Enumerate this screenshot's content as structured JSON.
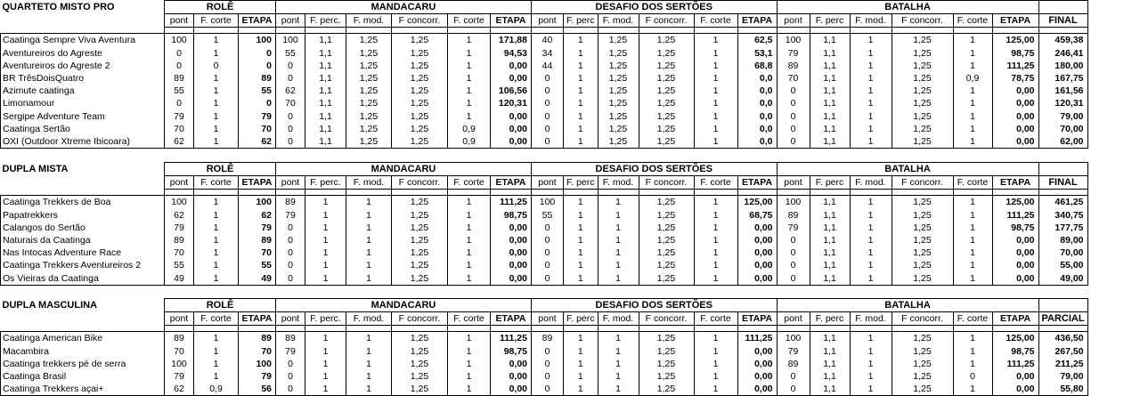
{
  "stages": [
    "ROLÊ",
    "MANDACARU",
    "DESAFIO DOS SERTÕES",
    "BATALHA"
  ],
  "sections": [
    {
      "title": "QUARTETO MISTO PRO",
      "final_label": "FINAL",
      "subheaders": [
        "pont",
        "F. corte",
        "ETAPA",
        "pont",
        "F. perc.",
        "F. mod.",
        "F concorr.",
        "F. corte",
        "ETAPA",
        "pont",
        "F. perc",
        "F. mod.",
        "F concorr.",
        "F. corte",
        "ETAPA",
        "pont",
        "F. perc",
        "F. mod.",
        "F concorr.",
        "F. corte",
        "ETAPA"
      ],
      "rows": [
        {
          "team": "Caatinga Sempre Viva Aventura",
          "cells": [
            "100",
            "1",
            "100",
            "100",
            "1,1",
            "1,25",
            "1,25",
            "1",
            "171,88",
            "40",
            "1",
            "1,25",
            "1,25",
            "1",
            "62,5",
            "100",
            "1,1",
            "1",
            "1,25",
            "1",
            "125,00"
          ],
          "final": "459,38"
        },
        {
          "team": "Aventureiros do Agreste",
          "cells": [
            "0",
            "1",
            "0",
            "55",
            "1,1",
            "1,25",
            "1,25",
            "1",
            "94,53",
            "34",
            "1",
            "1,25",
            "1,25",
            "1",
            "53,1",
            "79",
            "1,1",
            "1",
            "1,25",
            "1",
            "98,75"
          ],
          "final": "246,41"
        },
        {
          "team": "Aventureiros do Agreste 2",
          "cells": [
            "0",
            "0",
            "0",
            "0",
            "1,1",
            "1,25",
            "1,25",
            "1",
            "0,00",
            "44",
            "1",
            "1,25",
            "1,25",
            "1",
            "68,8",
            "89",
            "1,1",
            "1",
            "1,25",
            "1",
            "111,25"
          ],
          "final": "180,00"
        },
        {
          "team": "BR TrêsDoisQuatro",
          "cells": [
            "89",
            "1",
            "89",
            "0",
            "1,1",
            "1,25",
            "1,25",
            "1",
            "0,00",
            "0",
            "1",
            "1,25",
            "1,25",
            "1",
            "0,0",
            "70",
            "1,1",
            "1",
            "1,25",
            "0,9",
            "78,75"
          ],
          "final": "167,75"
        },
        {
          "team": "Azimute caatinga",
          "cells": [
            "55",
            "1",
            "55",
            "62",
            "1,1",
            "1,25",
            "1,25",
            "1",
            "106,56",
            "0",
            "1",
            "1,25",
            "1,25",
            "1",
            "0,0",
            "0",
            "1,1",
            "1",
            "1,25",
            "1",
            "0,00"
          ],
          "final": "161,56"
        },
        {
          "team": "Limonamour",
          "cells": [
            "0",
            "1",
            "0",
            "70",
            "1,1",
            "1,25",
            "1,25",
            "1",
            "120,31",
            "0",
            "1",
            "1,25",
            "1,25",
            "1",
            "0,0",
            "0",
            "1,1",
            "1",
            "1,25",
            "1",
            "0,00"
          ],
          "final": "120,31"
        },
        {
          "team": "Sergipe Adventure Team",
          "cells": [
            "79",
            "1",
            "79",
            "0",
            "1,1",
            "1,25",
            "1,25",
            "1",
            "0,00",
            "0",
            "1",
            "1,25",
            "1,25",
            "1",
            "0,0",
            "0",
            "1,1",
            "1",
            "1,25",
            "1",
            "0,00"
          ],
          "final": "79,00"
        },
        {
          "team": "Caatinga Sertão",
          "cells": [
            "70",
            "1",
            "70",
            "0",
            "1,1",
            "1,25",
            "1,25",
            "0,9",
            "0,00",
            "0",
            "1",
            "1,25",
            "1,25",
            "1",
            "0,0",
            "0",
            "1,1",
            "1",
            "1,25",
            "1",
            "0,00"
          ],
          "final": "70,00"
        },
        {
          "team": "OXI (Outdoor Xtreme Ibicoara)",
          "cells": [
            "62",
            "1",
            "62",
            "0",
            "1,1",
            "1,25",
            "1,25",
            "0,9",
            "0,00",
            "0",
            "1",
            "1,25",
            "1,25",
            "1",
            "0,0",
            "0",
            "1,1",
            "1",
            "1,25",
            "1",
            "0,00"
          ],
          "final": "62,00"
        }
      ]
    },
    {
      "title": "DUPLA MISTA",
      "final_label": "FINAL",
      "subheaders": [
        "pont",
        "F. corte",
        "ETAPA",
        "pont",
        "F. perc.",
        "F. mod.",
        "F concorr.",
        "F. corte",
        "ETAPA",
        "pont",
        "F. perc",
        "F. mod.",
        "F concorr.",
        "F. corte",
        "ETAPA",
        "pont",
        "F. perc",
        "F. mod.",
        "F concorr.",
        "F. corte",
        "ETAPA"
      ],
      "rows": [
        {
          "team": "Caatinga Trekkers de Boa",
          "cells": [
            "100",
            "1",
            "100",
            "89",
            "1",
            "1",
            "1,25",
            "1",
            "111,25",
            "100",
            "1",
            "1",
            "1,25",
            "1",
            "125,00",
            "100",
            "1,1",
            "1",
            "1,25",
            "1",
            "125,00"
          ],
          "final": "461,25"
        },
        {
          "team": "Papatrekkers",
          "cells": [
            "62",
            "1",
            "62",
            "79",
            "1",
            "1",
            "1,25",
            "1",
            "98,75",
            "55",
            "1",
            "1",
            "1,25",
            "1",
            "68,75",
            "89",
            "1,1",
            "1",
            "1,25",
            "1",
            "111,25"
          ],
          "final": "340,75"
        },
        {
          "team": "Calangos do Sertão",
          "cells": [
            "79",
            "1",
            "79",
            "0",
            "1",
            "1",
            "1,25",
            "1",
            "0,00",
            "0",
            "1",
            "1",
            "1,25",
            "1",
            "0,00",
            "79",
            "1,1",
            "1",
            "1,25",
            "1",
            "98,75"
          ],
          "final": "177,75"
        },
        {
          "team": "Naturais da Caatinga",
          "cells": [
            "89",
            "1",
            "89",
            "0",
            "1",
            "1",
            "1,25",
            "1",
            "0,00",
            "0",
            "1",
            "1",
            "1,25",
            "1",
            "0,00",
            "0",
            "1,1",
            "1",
            "1,25",
            "1",
            "0,00"
          ],
          "final": "89,00"
        },
        {
          "team": "Nas Intocas Adventure Race",
          "cells": [
            "70",
            "1",
            "70",
            "0",
            "1",
            "1",
            "1,25",
            "1",
            "0,00",
            "0",
            "1",
            "1",
            "1,25",
            "1",
            "0,00",
            "0",
            "1,1",
            "1",
            "1,25",
            "1",
            "0,00"
          ],
          "final": "70,00"
        },
        {
          "team": "Caatinga Trekkers Aventureiros 2",
          "cells": [
            "55",
            "1",
            "55",
            "0",
            "1",
            "1",
            "1,25",
            "1",
            "0,00",
            "0",
            "1",
            "1",
            "1,25",
            "1",
            "0,00",
            "0",
            "1,1",
            "1",
            "1,25",
            "1",
            "0,00"
          ],
          "final": "55,00"
        },
        {
          "team": "Os Vieiras da Caatinga",
          "cells": [
            "49",
            "1",
            "49",
            "0",
            "1",
            "1",
            "1,25",
            "1",
            "0,00",
            "0",
            "1",
            "1",
            "1,25",
            "1",
            "0,00",
            "0",
            "1,1",
            "1",
            "1,25",
            "1",
            "0,00"
          ],
          "final": "49,00"
        }
      ]
    },
    {
      "title": "DUPLA MASCULINA",
      "final_label": "PARCIAL",
      "subheaders": [
        "pont",
        "F. corte",
        "ETAPA",
        "pont",
        "F. perc.",
        "F. mod.",
        "F concorr.",
        "F. corte",
        "ETAPA",
        "pont",
        "F. perc",
        "F. mod.",
        "F concorr.",
        "F. corte",
        "ETAPA",
        "pont",
        "F. perc",
        "F. mod.",
        "F concorr.",
        "F. corte",
        "ETAPA"
      ],
      "rows": [
        {
          "team": "Caatinga American Bike",
          "cells": [
            "89",
            "1",
            "89",
            "89",
            "1",
            "1",
            "1,25",
            "1",
            "111,25",
            "89",
            "1",
            "1",
            "1,25",
            "1",
            "111,25",
            "100",
            "1,1",
            "1",
            "1,25",
            "1",
            "125,00"
          ],
          "final": "436,50"
        },
        {
          "team": "Macambira",
          "cells": [
            "70",
            "1",
            "70",
            "79",
            "1",
            "1",
            "1,25",
            "1",
            "98,75",
            "0",
            "1",
            "1",
            "1,25",
            "1",
            "0,00",
            "79",
            "1,1",
            "1",
            "1,25",
            "1",
            "98,75"
          ],
          "final": "267,50"
        },
        {
          "team": "Caatinga trekkers pé de serra",
          "cells": [
            "100",
            "1",
            "100",
            "0",
            "1",
            "1",
            "1,25",
            "1",
            "0,00",
            "0",
            "1",
            "1",
            "1,25",
            "1",
            "0,00",
            "89",
            "1,1",
            "1",
            "1,25",
            "1",
            "111,25"
          ],
          "final": "211,25"
        },
        {
          "team": "Caatinga Brasil",
          "cells": [
            "79",
            "1",
            "79",
            "0",
            "1",
            "1",
            "1,25",
            "1",
            "0,00",
            "0",
            "1",
            "1",
            "1,25",
            "1",
            "0,00",
            "0",
            "1,1",
            "1",
            "1,25",
            "0",
            "0,00"
          ],
          "final": "79,00"
        },
        {
          "team": "Caatinga Trekkers açai+",
          "cells": [
            "62",
            "0,9",
            "56",
            "0",
            "1",
            "1",
            "1,25",
            "1",
            "0,00",
            "0",
            "1",
            "1",
            "1,25",
            "1",
            "0,00",
            "0",
            "1,1",
            "1",
            "1,25",
            "1",
            "0,00"
          ],
          "final": "55,80"
        }
      ]
    }
  ]
}
